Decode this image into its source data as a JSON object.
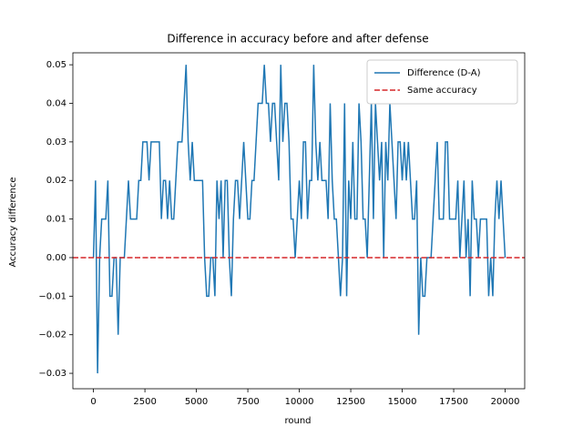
{
  "chart_data": {
    "type": "line",
    "title": "Difference in accuracy before and after defense",
    "x_label": "round",
    "y_label": "Accuracy difference",
    "x": [
      0,
      100,
      200,
      300,
      400,
      500,
      600,
      700,
      800,
      900,
      1000,
      1100,
      1200,
      1300,
      1400,
      1500,
      1600,
      1700,
      1800,
      1900,
      2000,
      2100,
      2200,
      2300,
      2400,
      2500,
      2600,
      2700,
      2800,
      2900,
      3000,
      3100,
      3200,
      3300,
      3400,
      3500,
      3600,
      3700,
      3800,
      3900,
      4000,
      4100,
      4200,
      4300,
      4400,
      4500,
      4600,
      4700,
      4800,
      4900,
      5000,
      5100,
      5200,
      5300,
      5400,
      5500,
      5600,
      5700,
      5800,
      5900,
      6000,
      6100,
      6200,
      6300,
      6400,
      6500,
      6600,
      6700,
      6800,
      6900,
      7000,
      7100,
      7200,
      7300,
      7400,
      7500,
      7600,
      7700,
      7800,
      7900,
      8000,
      8100,
      8200,
      8300,
      8400,
      8500,
      8600,
      8700,
      8800,
      8900,
      9000,
      9100,
      9200,
      9300,
      9400,
      9500,
      9600,
      9700,
      9800,
      9900,
      10000,
      10100,
      10200,
      10300,
      10400,
      10500,
      10600,
      10700,
      10800,
      10900,
      11000,
      11100,
      11200,
      11300,
      11400,
      11500,
      11600,
      11700,
      11800,
      11900,
      12000,
      12100,
      12200,
      12300,
      12400,
      12500,
      12600,
      12700,
      12800,
      12900,
      13000,
      13100,
      13200,
      13300,
      13400,
      13500,
      13600,
      13700,
      13800,
      13900,
      14000,
      14100,
      14200,
      14300,
      14400,
      14500,
      14600,
      14700,
      14800,
      14900,
      15000,
      15100,
      15200,
      15300,
      15400,
      15500,
      15600,
      15700,
      15800,
      15900,
      16000,
      16100,
      16200,
      16300,
      16400,
      16500,
      16600,
      16700,
      16800,
      16900,
      17000,
      17100,
      17200,
      17300,
      17400,
      17500,
      17600,
      17700,
      17800,
      17900,
      18000,
      18100,
      18200,
      18300,
      18400,
      18500,
      18600,
      18700,
      18800,
      18900,
      19000,
      19100,
      19200,
      19300,
      19400,
      19500,
      19600,
      19700,
      19800,
      19900,
      20000
    ],
    "series": [
      {
        "name": "Difference (D-A)",
        "color": "#1f77b4",
        "values": [
          0,
          0.02,
          -0.03,
          0,
          0.01,
          0.01,
          0.01,
          0.02,
          -0.01,
          -0.01,
          0,
          0,
          -0.02,
          0,
          0,
          0,
          0.01,
          0.02,
          0.01,
          0.01,
          0.01,
          0.01,
          0.02,
          0.02,
          0.03,
          0.03,
          0.03,
          0.02,
          0.03,
          0.03,
          0.03,
          0.03,
          0.03,
          0.01,
          0.02,
          0.02,
          0.01,
          0.02,
          0.01,
          0.01,
          0.02,
          0.03,
          0.03,
          0.03,
          0.04,
          0.05,
          0.03,
          0.02,
          0.03,
          0.02,
          0.02,
          0.02,
          0.02,
          0.02,
          0,
          -0.01,
          -0.01,
          0,
          0,
          -0.01,
          0.02,
          0.01,
          0.02,
          0,
          0.02,
          0.02,
          0,
          -0.01,
          0.01,
          0.02,
          0.02,
          0.01,
          0.02,
          0.03,
          0.02,
          0.01,
          0.01,
          0.02,
          0.02,
          0.03,
          0.04,
          0.04,
          0.04,
          0.05,
          0.04,
          0.04,
          0.03,
          0.04,
          0.04,
          0.03,
          0.02,
          0.05,
          0.03,
          0.04,
          0.04,
          0.03,
          0.01,
          0.01,
          0,
          0.01,
          0.02,
          0.01,
          0.03,
          0.03,
          0.01,
          0.02,
          0.02,
          0.05,
          0.03,
          0.02,
          0.03,
          0.02,
          0.02,
          0.02,
          0.01,
          0.04,
          0.02,
          0.01,
          0.01,
          0,
          -0.01,
          0,
          0.04,
          -0.01,
          0.02,
          0.01,
          0.03,
          0.01,
          0.01,
          0.04,
          0.03,
          0.01,
          0.01,
          0,
          0.02,
          0.04,
          0.01,
          0.04,
          0.03,
          0.02,
          0.03,
          0,
          0.03,
          0.02,
          0.04,
          0.03,
          0.02,
          0.01,
          0.03,
          0.03,
          0.02,
          0.03,
          0.02,
          0.03,
          0.02,
          0.01,
          0.01,
          0.02,
          -0.02,
          0,
          -0.01,
          -0.01,
          0,
          0,
          0,
          0.01,
          0.02,
          0.03,
          0.01,
          0.01,
          0.01,
          0.03,
          0.03,
          0.01,
          0.01,
          0.01,
          0.01,
          0.02,
          0,
          0.01,
          0.02,
          0,
          0.01,
          -0.01,
          0.02,
          0.01,
          0.01,
          0,
          0.01,
          0.01,
          0.01,
          0.01,
          -0.01,
          0,
          -0.01,
          0.01,
          0.02,
          0.01,
          0.02,
          0.01,
          0
        ]
      }
    ],
    "reference_line": {
      "name": "Same accuracy",
      "value": 0,
      "color": "#d62728",
      "style": "dashed"
    },
    "xlim": [
      -1000,
      20950
    ],
    "ylim": [
      -0.034,
      0.0531
    ],
    "xticks": [
      0,
      2500,
      5000,
      7500,
      10000,
      12500,
      15000,
      17500,
      20000
    ],
    "yticks": [
      {
        "value": -0.03,
        "label": "−0.03"
      },
      {
        "value": -0.02,
        "label": "−0.02"
      },
      {
        "value": -0.01,
        "label": "−0.01"
      },
      {
        "value": 0,
        "label": "0.00"
      },
      {
        "value": 0.01,
        "label": "0.01"
      },
      {
        "value": 0.02,
        "label": "0.02"
      },
      {
        "value": 0.03,
        "label": "0.03"
      },
      {
        "value": 0.04,
        "label": "0.04"
      },
      {
        "value": 0.05,
        "label": "0.05"
      }
    ],
    "legend": "upper right"
  }
}
